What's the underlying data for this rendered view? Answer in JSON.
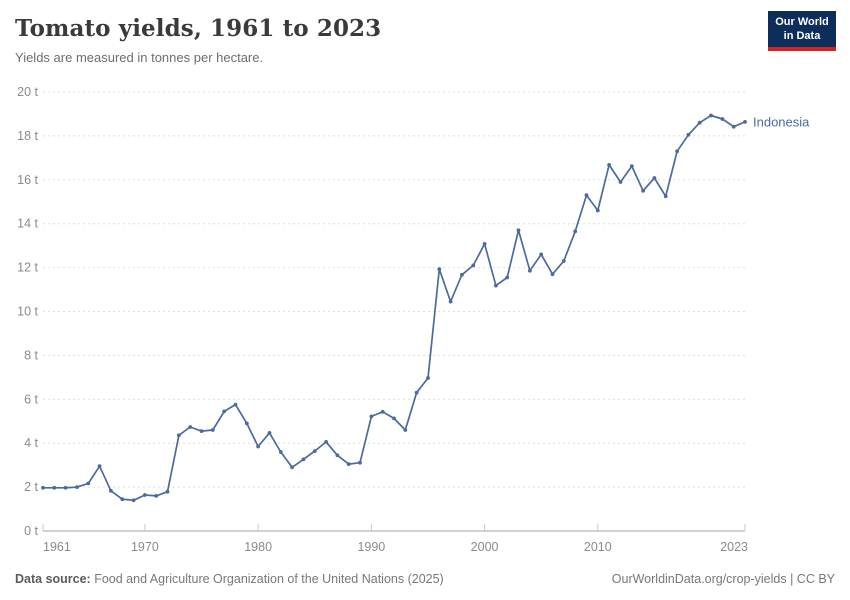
{
  "header": {
    "logo_line1": "Our World",
    "logo_line2": "in Data"
  },
  "footer": {
    "source_label": "Data source:",
    "source_text": " Food and Agriculture Organization of the United Nations (2025)",
    "attribution": "OurWorldinData.org/crop-yields | CC BY"
  },
  "colors": {
    "line": "#4c6a9c",
    "grid": "#dedede",
    "axis": "#a3a3a3",
    "tick": "#c9c9c9",
    "tick_label": "#8b8b8b",
    "logo_bg": "#0d2d5a",
    "logo_red": "#d2241e"
  },
  "chart_data": {
    "type": "line",
    "title": "Tomato yields, 1961 to 2023",
    "subtitle": "Yields are measured in tonnes per hectare.",
    "xlabel": "",
    "ylabel": "tonnes per hectare",
    "unit": "t",
    "grid": true,
    "legend_position": "end-of-line",
    "xlim": [
      1961,
      2023
    ],
    "ylim": [
      0,
      20
    ],
    "yticks": [
      {
        "value": 0,
        "label": "0 t"
      },
      {
        "value": 2,
        "label": "2 t"
      },
      {
        "value": 4,
        "label": "4 t"
      },
      {
        "value": 6,
        "label": "6 t"
      },
      {
        "value": 8,
        "label": "8 t"
      },
      {
        "value": 10,
        "label": "10 t"
      },
      {
        "value": 12,
        "label": "12 t"
      },
      {
        "value": 14,
        "label": "14 t"
      },
      {
        "value": 16,
        "label": "16 t"
      },
      {
        "value": 18,
        "label": "18 t"
      },
      {
        "value": 20,
        "label": "20 t"
      }
    ],
    "xticks": [
      {
        "value": 1961,
        "label": "1961"
      },
      {
        "value": 1970,
        "label": "1970"
      },
      {
        "value": 1980,
        "label": "1980"
      },
      {
        "value": 1990,
        "label": "1990"
      },
      {
        "value": 2000,
        "label": "2000"
      },
      {
        "value": 2010,
        "label": "2010"
      },
      {
        "value": 2023,
        "label": "2023"
      }
    ],
    "series": [
      {
        "name": "Indonesia",
        "color": "#4c6a9c",
        "x": [
          1961,
          1962,
          1963,
          1964,
          1965,
          1966,
          1967,
          1968,
          1969,
          1970,
          1971,
          1972,
          1973,
          1974,
          1975,
          1976,
          1977,
          1978,
          1979,
          1980,
          1981,
          1982,
          1983,
          1984,
          1985,
          1986,
          1987,
          1988,
          1989,
          1990,
          1991,
          1992,
          1993,
          1994,
          1995,
          1996,
          1997,
          1998,
          1999,
          2000,
          2001,
          2002,
          2003,
          2004,
          2005,
          2006,
          2007,
          2008,
          2009,
          2010,
          2011,
          2012,
          2013,
          2014,
          2015,
          2016,
          2017,
          2018,
          2019,
          2020,
          2021,
          2022,
          2023
        ],
        "values": [
          1.97,
          1.97,
          1.97,
          2.0,
          2.17,
          2.95,
          1.83,
          1.45,
          1.4,
          1.64,
          1.6,
          1.79,
          4.36,
          4.74,
          4.55,
          4.6,
          5.45,
          5.76,
          4.9,
          3.85,
          4.47,
          3.6,
          2.9,
          3.26,
          3.64,
          4.06,
          3.45,
          3.05,
          3.11,
          5.22,
          5.43,
          5.13,
          4.6,
          6.3,
          6.97,
          11.93,
          10.45,
          11.67,
          12.1,
          13.08,
          11.18,
          11.55,
          13.7,
          11.86,
          12.6,
          11.7,
          12.3,
          13.65,
          15.3,
          14.6,
          16.68,
          15.9,
          16.62,
          15.5,
          16.08,
          15.25,
          17.3,
          18.05,
          18.6,
          18.93,
          18.77,
          18.42,
          18.64
        ]
      }
    ]
  }
}
